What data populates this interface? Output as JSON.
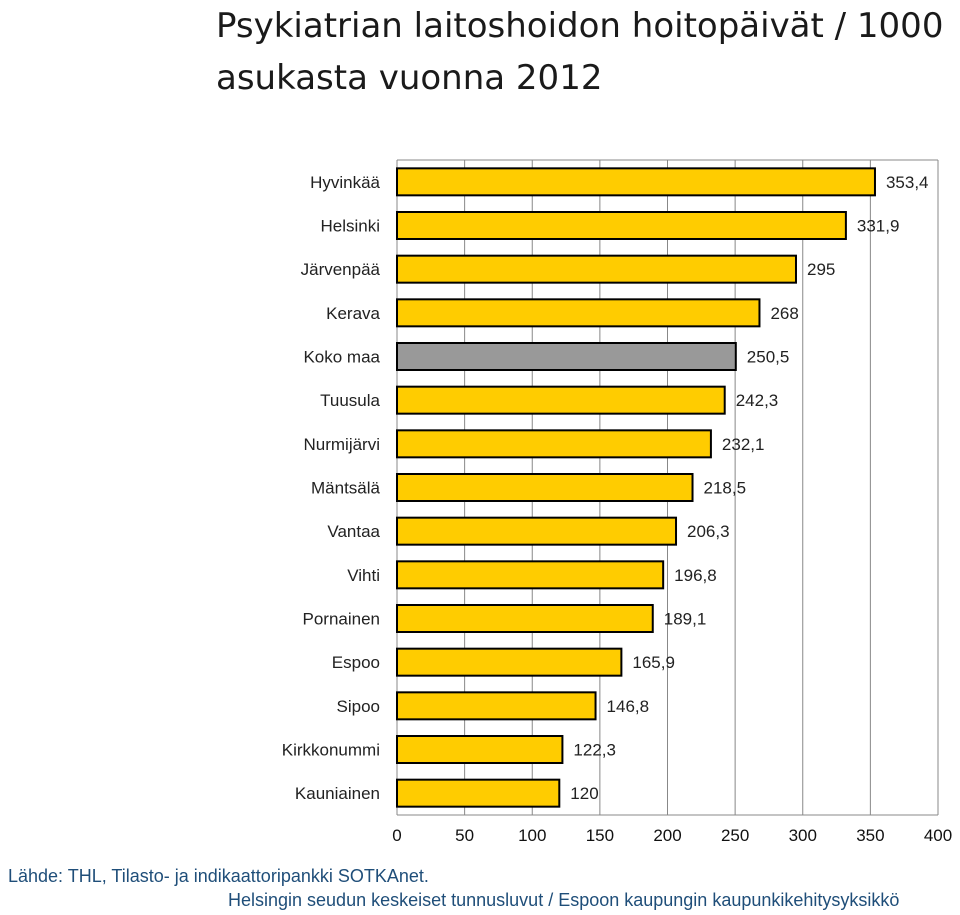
{
  "chart_data": {
    "type": "bar",
    "orientation": "horizontal",
    "title": "Psykiatrian laitoshoidon hoitopäivät / 1000 asukasta vuonna 2012",
    "categories": [
      "Hyvinkää",
      "Helsinki",
      "Järvenpää",
      "Kerava",
      "Koko maa",
      "Tuusula",
      "Nurmijärvi",
      "Mäntsälä",
      "Vantaa",
      "Vihti",
      "Pornainen",
      "Espoo",
      "Sipoo",
      "Kirkkonummi",
      "Kauniainen"
    ],
    "values": [
      353.4,
      331.9,
      295,
      268,
      250.5,
      242.3,
      232.1,
      218.5,
      206.3,
      196.8,
      189.1,
      165.9,
      146.8,
      122.3,
      120
    ],
    "value_labels": [
      "353,4",
      "331,9",
      "295",
      "268",
      "250,5",
      "242,3",
      "232,1",
      "218,5",
      "206,3",
      "196,8",
      "189,1",
      "165,9",
      "146,8",
      "122,3",
      "120"
    ],
    "xlim": [
      0,
      400
    ],
    "xticks": [
      "0",
      "50",
      "100",
      "150",
      "200",
      "250",
      "300",
      "350",
      "400"
    ],
    "grid": "vertical",
    "colors": {
      "bar": "#FFCC00",
      "highlight": "#999999",
      "outline": "#000000",
      "grid": "#888888"
    },
    "highlight_category": "Koko maa"
  },
  "source_note": "Lähde: THL, Tilasto- ja indikaattoripankki SOTKAnet.",
  "footer_note": "Helsingin seudun keskeiset tunnusluvut / Espoon kaupungin kaupunkikehitysyksikkö"
}
